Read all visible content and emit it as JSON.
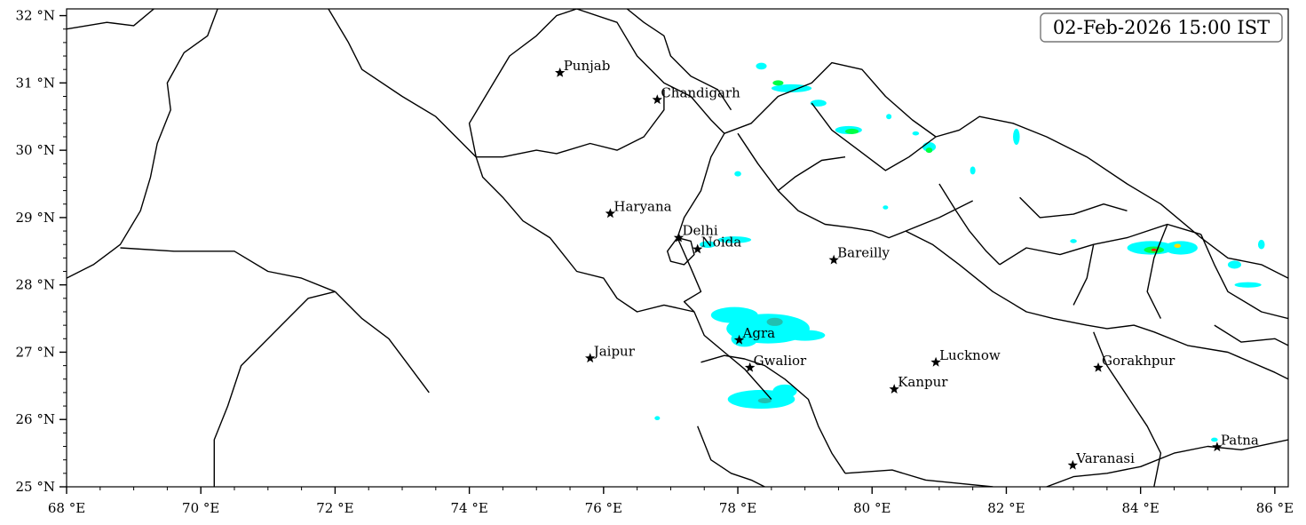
{
  "map": {
    "timestamp": "02-Feb-2026 15:00 IST",
    "lon_range": [
      68,
      86.2
    ],
    "lat_range": [
      25,
      32.1
    ],
    "lon_ticks": [
      {
        "value": 68,
        "label": "68 °E"
      },
      {
        "value": 70,
        "label": "70 °E"
      },
      {
        "value": 72,
        "label": "72 °E"
      },
      {
        "value": 74,
        "label": "74 °E"
      },
      {
        "value": 76,
        "label": "76 °E"
      },
      {
        "value": 78,
        "label": "78 °E"
      },
      {
        "value": 80,
        "label": "80 °E"
      },
      {
        "value": 82,
        "label": "82 °E"
      },
      {
        "value": 84,
        "label": "84 °E"
      },
      {
        "value": 86,
        "label": "86 °E"
      }
    ],
    "lat_ticks": [
      {
        "value": 25,
        "label": "25 °N"
      },
      {
        "value": 26,
        "label": "26 °N"
      },
      {
        "value": 27,
        "label": "27 °N"
      },
      {
        "value": 28,
        "label": "28 °N"
      },
      {
        "value": 29,
        "label": "29 °N"
      },
      {
        "value": 30,
        "label": "30 °N"
      },
      {
        "value": 31,
        "label": "31 °N"
      },
      {
        "value": 32,
        "label": "32 °N"
      }
    ],
    "cities": [
      {
        "name": "Punjab",
        "lon": 75.35,
        "lat": 31.15
      },
      {
        "name": "Chandigarh",
        "lon": 76.8,
        "lat": 30.75
      },
      {
        "name": "Haryana",
        "lon": 76.1,
        "lat": 29.06
      },
      {
        "name": "Delhi",
        "lon": 77.12,
        "lat": 28.7
      },
      {
        "name": "Noida",
        "lon": 77.4,
        "lat": 28.53
      },
      {
        "name": "Bareilly",
        "lon": 79.43,
        "lat": 28.37
      },
      {
        "name": "Agra",
        "lon": 78.02,
        "lat": 27.18
      },
      {
        "name": "Jaipur",
        "lon": 75.8,
        "lat": 26.91
      },
      {
        "name": "Gwalior",
        "lon": 78.18,
        "lat": 26.77
      },
      {
        "name": "Lucknow",
        "lon": 80.95,
        "lat": 26.85
      },
      {
        "name": "Kanpur",
        "lon": 80.33,
        "lat": 26.45
      },
      {
        "name": "Gorakhpur",
        "lon": 83.37,
        "lat": 26.77
      },
      {
        "name": "Varanasi",
        "lon": 82.99,
        "lat": 25.32
      },
      {
        "name": "Patna",
        "lon": 85.14,
        "lat": 25.59
      }
    ],
    "colors": {
      "rain_light": "#00ffff",
      "rain_medium": "#22c0b0",
      "rain_heavy": "#00ff44",
      "rain_very_heavy": "#ffdd00",
      "rain_extreme": "#ff2200",
      "boundary": "#000000"
    },
    "rain_cells": [
      {
        "level": 1,
        "lon": 78.45,
        "lat": 27.35,
        "rlon": 0.62,
        "rlat": 0.22
      },
      {
        "level": 1,
        "lon": 77.95,
        "lat": 27.55,
        "rlon": 0.35,
        "rlat": 0.12
      },
      {
        "level": 1,
        "lon": 79.0,
        "lat": 27.25,
        "rlon": 0.3,
        "rlat": 0.08
      },
      {
        "level": 1,
        "lon": 78.1,
        "lat": 27.2,
        "rlon": 0.2,
        "rlat": 0.12
      },
      {
        "level": 2,
        "lon": 78.55,
        "lat": 27.45,
        "rlon": 0.12,
        "rlat": 0.06
      },
      {
        "level": 1,
        "lon": 78.35,
        "lat": 26.3,
        "rlon": 0.5,
        "rlat": 0.14
      },
      {
        "level": 1,
        "lon": 78.7,
        "lat": 26.42,
        "rlon": 0.18,
        "rlat": 0.1
      },
      {
        "level": 2,
        "lon": 78.4,
        "lat": 26.28,
        "rlon": 0.1,
        "rlat": 0.04
      },
      {
        "level": 1,
        "lon": 77.95,
        "lat": 28.67,
        "rlon": 0.25,
        "rlat": 0.05
      },
      {
        "level": 1,
        "lon": 77.55,
        "lat": 28.6,
        "rlon": 0.12,
        "rlat": 0.05
      },
      {
        "level": 1,
        "lon": 76.8,
        "lat": 26.02,
        "rlon": 0.04,
        "rlat": 0.03
      },
      {
        "level": 1,
        "lon": 78.8,
        "lat": 30.92,
        "rlon": 0.3,
        "rlat": 0.06
      },
      {
        "level": 3,
        "lon": 78.6,
        "lat": 31.0,
        "rlon": 0.08,
        "rlat": 0.04
      },
      {
        "level": 1,
        "lon": 78.35,
        "lat": 31.25,
        "rlon": 0.08,
        "rlat": 0.05
      },
      {
        "level": 1,
        "lon": 79.2,
        "lat": 30.7,
        "rlon": 0.12,
        "rlat": 0.05
      },
      {
        "level": 1,
        "lon": 79.65,
        "lat": 30.3,
        "rlon": 0.2,
        "rlat": 0.06
      },
      {
        "level": 3,
        "lon": 79.7,
        "lat": 30.28,
        "rlon": 0.1,
        "rlat": 0.04
      },
      {
        "level": 1,
        "lon": 80.85,
        "lat": 30.05,
        "rlon": 0.1,
        "rlat": 0.07
      },
      {
        "level": 3,
        "lon": 80.85,
        "lat": 30.0,
        "rlon": 0.05,
        "rlat": 0.04
      },
      {
        "level": 1,
        "lon": 80.65,
        "lat": 30.25,
        "rlon": 0.05,
        "rlat": 0.03
      },
      {
        "level": 1,
        "lon": 80.25,
        "lat": 30.5,
        "rlon": 0.04,
        "rlat": 0.04
      },
      {
        "level": 1,
        "lon": 82.15,
        "lat": 30.2,
        "rlon": 0.05,
        "rlat": 0.12
      },
      {
        "level": 1,
        "lon": 81.5,
        "lat": 29.7,
        "rlon": 0.04,
        "rlat": 0.06
      },
      {
        "level": 1,
        "lon": 78.0,
        "lat": 29.65,
        "rlon": 0.05,
        "rlat": 0.04
      },
      {
        "level": 1,
        "lon": 84.15,
        "lat": 28.55,
        "rlon": 0.35,
        "rlat": 0.1
      },
      {
        "level": 3,
        "lon": 84.2,
        "lat": 28.52,
        "rlon": 0.15,
        "rlat": 0.05
      },
      {
        "level": 5,
        "lon": 84.2,
        "lat": 28.52,
        "rlon": 0.04,
        "rlat": 0.02
      },
      {
        "level": 1,
        "lon": 84.6,
        "lat": 28.55,
        "rlon": 0.25,
        "rlat": 0.1
      },
      {
        "level": 4,
        "lon": 84.55,
        "lat": 28.58,
        "rlon": 0.05,
        "rlat": 0.03
      },
      {
        "level": 1,
        "lon": 85.4,
        "lat": 28.3,
        "rlon": 0.1,
        "rlat": 0.06
      },
      {
        "level": 1,
        "lon": 85.6,
        "lat": 28.0,
        "rlon": 0.2,
        "rlat": 0.04
      },
      {
        "level": 1,
        "lon": 85.8,
        "lat": 28.6,
        "rlon": 0.05,
        "rlat": 0.07
      },
      {
        "level": 1,
        "lon": 85.1,
        "lat": 25.7,
        "rlon": 0.05,
        "rlat": 0.03
      },
      {
        "level": 1,
        "lon": 83.0,
        "lat": 28.65,
        "rlon": 0.05,
        "rlat": 0.03
      },
      {
        "level": 1,
        "lon": 80.2,
        "lat": 29.15,
        "rlon": 0.04,
        "rlat": 0.03
      }
    ],
    "boundaries": [
      [
        [
          68,
          31.8
        ],
        [
          68.6,
          31.9
        ],
        [
          69.0,
          31.85
        ],
        [
          69.3,
          32.1
        ]
      ],
      [
        [
          70.25,
          32.1
        ],
        [
          70.1,
          31.7
        ],
        [
          69.75,
          31.45
        ],
        [
          69.5,
          31.0
        ],
        [
          69.55,
          30.6
        ],
        [
          69.35,
          30.1
        ],
        [
          69.25,
          29.6
        ],
        [
          69.1,
          29.1
        ],
        [
          68.8,
          28.6
        ],
        [
          68.4,
          28.3
        ],
        [
          68,
          28.1
        ]
      ],
      [
        [
          68.8,
          28.55
        ],
        [
          69.6,
          28.5
        ],
        [
          70.5,
          28.5
        ],
        [
          71.0,
          28.2
        ],
        [
          71.5,
          28.1
        ],
        [
          72.0,
          27.9
        ]
      ],
      [
        [
          72.0,
          27.9
        ],
        [
          71.6,
          27.8
        ],
        [
          71.2,
          27.4
        ],
        [
          70.9,
          27.1
        ],
        [
          70.6,
          26.8
        ],
        [
          70.4,
          26.2
        ],
        [
          70.2,
          25.7
        ],
        [
          70.2,
          25.0
        ]
      ],
      [
        [
          72.0,
          27.9
        ],
        [
          72.4,
          27.5
        ],
        [
          72.8,
          27.2
        ],
        [
          73.1,
          26.8
        ],
        [
          73.4,
          26.4
        ]
      ],
      [
        [
          71.9,
          32.1
        ],
        [
          72.2,
          31.6
        ],
        [
          72.4,
          31.2
        ],
        [
          73.0,
          30.8
        ],
        [
          73.5,
          30.5
        ],
        [
          73.8,
          30.2
        ],
        [
          74.1,
          29.9
        ]
      ],
      [
        [
          74.1,
          29.9
        ],
        [
          74.5,
          29.9
        ],
        [
          75.0,
          30.0
        ],
        [
          75.3,
          29.95
        ],
        [
          75.8,
          30.1
        ],
        [
          76.2,
          30.0
        ],
        [
          76.6,
          30.2
        ],
        [
          76.9,
          30.6
        ],
        [
          76.9,
          30.9
        ]
      ],
      [
        [
          74.1,
          29.9
        ],
        [
          74.0,
          30.4
        ],
        [
          74.3,
          30.9
        ],
        [
          74.6,
          31.4
        ],
        [
          75.0,
          31.7
        ],
        [
          75.3,
          32.0
        ],
        [
          75.6,
          32.1
        ]
      ],
      [
        [
          75.6,
          32.1
        ],
        [
          76.2,
          31.9
        ],
        [
          76.5,
          31.4
        ],
        [
          76.9,
          31.0
        ],
        [
          77.3,
          30.8
        ],
        [
          77.6,
          30.45
        ],
        [
          77.8,
          30.25
        ]
      ],
      [
        [
          76.35,
          32.1
        ],
        [
          76.6,
          31.9
        ],
        [
          76.9,
          31.7
        ],
        [
          77.0,
          31.4
        ],
        [
          77.3,
          31.1
        ],
        [
          77.7,
          30.9
        ],
        [
          77.9,
          30.6
        ]
      ],
      [
        [
          77.8,
          30.25
        ],
        [
          77.6,
          29.9
        ],
        [
          77.45,
          29.4
        ],
        [
          77.2,
          29.0
        ],
        [
          77.1,
          28.7
        ]
      ],
      [
        [
          77.8,
          30.25
        ],
        [
          78.2,
          30.4
        ],
        [
          78.6,
          30.8
        ],
        [
          79.1,
          31.0
        ],
        [
          79.4,
          31.3
        ],
        [
          79.85,
          31.2
        ],
        [
          80.2,
          30.8
        ],
        [
          80.6,
          30.45
        ],
        [
          80.95,
          30.2
        ]
      ],
      [
        [
          78.0,
          30.25
        ],
        [
          78.3,
          29.8
        ],
        [
          78.6,
          29.4
        ],
        [
          78.9,
          29.1
        ],
        [
          79.3,
          28.9
        ],
        [
          79.7,
          28.85
        ],
        [
          80.0,
          28.8
        ],
        [
          80.25,
          28.7
        ],
        [
          80.5,
          28.8
        ]
      ],
      [
        [
          80.95,
          30.2
        ],
        [
          81.3,
          30.3
        ],
        [
          81.6,
          30.5
        ],
        [
          82.1,
          30.4
        ],
        [
          82.6,
          30.2
        ],
        [
          83.2,
          29.9
        ],
        [
          83.8,
          29.5
        ],
        [
          84.3,
          29.2
        ],
        [
          84.9,
          28.7
        ],
        [
          85.3,
          28.4
        ],
        [
          85.8,
          28.3
        ],
        [
          86.2,
          28.1
        ]
      ],
      [
        [
          80.5,
          28.8
        ],
        [
          80.9,
          28.6
        ],
        [
          81.3,
          28.3
        ],
        [
          81.8,
          27.9
        ],
        [
          82.3,
          27.6
        ],
        [
          82.7,
          27.5
        ],
        [
          83.2,
          27.4
        ],
        [
          83.5,
          27.35
        ],
        [
          83.9,
          27.4
        ],
        [
          84.2,
          27.3
        ],
        [
          84.7,
          27.1
        ],
        [
          85.3,
          27.0
        ],
        [
          86.0,
          26.7
        ],
        [
          86.2,
          26.6
        ]
      ],
      [
        [
          77.1,
          28.7
        ],
        [
          77.3,
          28.25
        ],
        [
          77.45,
          27.9
        ],
        [
          77.2,
          27.75
        ],
        [
          77.35,
          27.6
        ],
        [
          77.5,
          27.25
        ],
        [
          77.8,
          27.0
        ],
        [
          78.1,
          26.75
        ],
        [
          78.5,
          26.3
        ]
      ],
      [
        [
          77.35,
          27.6
        ],
        [
          76.9,
          27.7
        ],
        [
          76.5,
          27.6
        ],
        [
          76.2,
          27.8
        ],
        [
          76.0,
          28.1
        ],
        [
          75.6,
          28.2
        ],
        [
          75.2,
          28.7
        ],
        [
          74.8,
          28.95
        ],
        [
          74.5,
          29.3
        ],
        [
          74.2,
          29.6
        ],
        [
          74.1,
          29.9
        ]
      ],
      [
        [
          77.1,
          28.7
        ],
        [
          76.95,
          28.5
        ],
        [
          77.0,
          28.35
        ],
        [
          77.2,
          28.3
        ],
        [
          77.35,
          28.45
        ],
        [
          77.3,
          28.65
        ],
        [
          77.1,
          28.7
        ]
      ],
      [
        [
          77.45,
          26.85
        ],
        [
          77.8,
          26.95
        ],
        [
          78.1,
          26.9
        ],
        [
          78.4,
          26.8
        ],
        [
          78.7,
          26.6
        ],
        [
          79.05,
          26.3
        ],
        [
          79.2,
          25.9
        ],
        [
          79.4,
          25.5
        ],
        [
          79.6,
          25.2
        ]
      ],
      [
        [
          77.4,
          25.9
        ],
        [
          77.6,
          25.4
        ],
        [
          77.9,
          25.2
        ],
        [
          78.2,
          25.1
        ],
        [
          78.4,
          25.0
        ]
      ],
      [
        [
          79.6,
          25.2
        ],
        [
          80.3,
          25.25
        ],
        [
          80.8,
          25.1
        ],
        [
          81.3,
          25.05
        ],
        [
          81.8,
          25.0
        ]
      ],
      [
        [
          82.6,
          25.0
        ],
        [
          83.0,
          25.15
        ],
        [
          83.5,
          25.2
        ],
        [
          84.0,
          25.3
        ],
        [
          84.5,
          25.5
        ],
        [
          85.0,
          25.6
        ],
        [
          85.5,
          25.55
        ],
        [
          86.2,
          25.7
        ]
      ],
      [
        [
          83.3,
          27.3
        ],
        [
          83.5,
          26.8
        ],
        [
          83.7,
          26.5
        ],
        [
          83.9,
          26.2
        ],
        [
          84.1,
          25.9
        ],
        [
          84.3,
          25.5
        ],
        [
          84.2,
          25.0
        ]
      ],
      [
        [
          81.0,
          29.5
        ],
        [
          81.25,
          29.1
        ],
        [
          81.45,
          28.8
        ],
        [
          81.7,
          28.5
        ],
        [
          81.9,
          28.3
        ]
      ],
      [
        [
          81.9,
          28.3
        ],
        [
          82.3,
          28.55
        ],
        [
          82.8,
          28.45
        ],
        [
          83.3,
          28.6
        ],
        [
          83.8,
          28.7
        ],
        [
          84.4,
          28.9
        ],
        [
          84.9,
          28.75
        ]
      ],
      [
        [
          82.2,
          29.3
        ],
        [
          82.5,
          29.0
        ],
        [
          83.0,
          29.05
        ],
        [
          83.45,
          29.2
        ],
        [
          83.8,
          29.1
        ]
      ],
      [
        [
          83.3,
          28.6
        ],
        [
          83.2,
          28.1
        ],
        [
          83.0,
          27.7
        ]
      ],
      [
        [
          84.4,
          28.9
        ],
        [
          84.2,
          28.4
        ],
        [
          84.1,
          27.9
        ],
        [
          84.3,
          27.5
        ]
      ],
      [
        [
          84.9,
          28.75
        ],
        [
          85.1,
          28.3
        ],
        [
          85.3,
          27.9
        ],
        [
          85.8,
          27.6
        ],
        [
          86.2,
          27.5
        ]
      ],
      [
        [
          85.1,
          27.4
        ],
        [
          85.5,
          27.15
        ],
        [
          86.0,
          27.2
        ],
        [
          86.2,
          27.1
        ]
      ],
      [
        [
          81.5,
          29.25
        ],
        [
          81.0,
          29.0
        ],
        [
          80.5,
          28.8
        ]
      ],
      [
        [
          79.1,
          30.7
        ],
        [
          79.4,
          30.3
        ],
        [
          79.8,
          30.0
        ],
        [
          80.2,
          29.7
        ],
        [
          80.55,
          29.9
        ],
        [
          80.95,
          30.2
        ]
      ],
      [
        [
          78.6,
          29.4
        ],
        [
          78.85,
          29.6
        ],
        [
          79.25,
          29.85
        ],
        [
          79.6,
          29.9
        ]
      ]
    ]
  }
}
